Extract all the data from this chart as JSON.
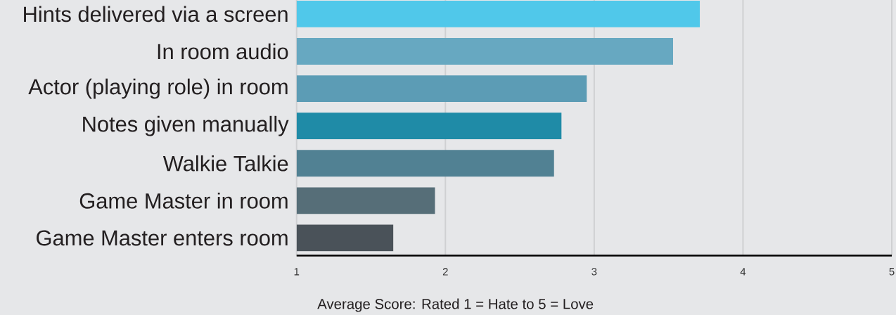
{
  "chart_data": {
    "type": "bar",
    "orientation": "horizontal",
    "categories": [
      "Hints delivered via a screen",
      "In room audio",
      "Actor (playing role) in room",
      "Notes given manually",
      "Walkie Talkie",
      "Game Master in room",
      "Game Master enters room"
    ],
    "values": [
      3.71,
      3.53,
      2.95,
      2.78,
      2.73,
      1.93,
      1.65
    ],
    "colors": [
      "#50c8ea",
      "#67a8c1",
      "#5c9cb5",
      "#1f8ba7",
      "#518193",
      "#566e78",
      "#4a5259"
    ],
    "xlabel": "Average Score: Rated 1 = Hate to 5 = Love",
    "xlim": [
      1,
      5
    ],
    "xticks": [
      1,
      2,
      3,
      4,
      5
    ],
    "grid": "x"
  }
}
